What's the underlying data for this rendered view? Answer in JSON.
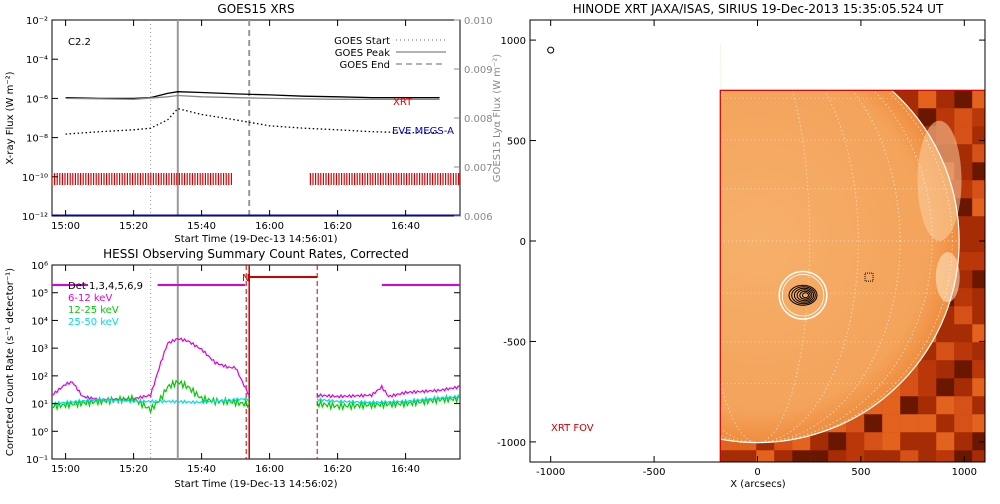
{
  "panels": {
    "goes": {
      "title": "GOES15 XRS",
      "class_label": "C2.2",
      "y_label_left": "X-ray Flux (W m⁻²)",
      "y_label_right": "GOES15 Lyα Flux (W m⁻²)",
      "x_label": "Start Time (19-Dec-13 14:56:01)",
      "legend": [
        "GOES Start",
        "GOES Peak",
        "GOES End"
      ],
      "series_labels": {
        "xrt": "XRT",
        "eve": "EVE MEGS-A"
      },
      "x_ticks": [
        "15:00",
        "15:20",
        "15:40",
        "16:00",
        "16:20",
        "16:40"
      ],
      "y_ticks_left": [
        "10⁻²",
        "10⁻⁴",
        "10⁻⁶",
        "10⁻⁸",
        "10⁻¹⁰",
        "10⁻¹²"
      ],
      "y_ticks_right": [
        "0.010",
        "0.009",
        "0.008",
        "0.007",
        "0.006"
      ]
    },
    "hessi": {
      "title": "HESSI Observing Summary Count Rates, Corrected",
      "y_label": "Corrected Count Rate (s⁻¹ detector⁻¹)",
      "x_label": "Start Time (19-Dec-13 14:56:02)",
      "legend": [
        {
          "label": "Det 1,3,4,5,6,9",
          "color": "#000000"
        },
        {
          "label": "6-12 keV",
          "color": "#dd00dd"
        },
        {
          "label": "12-25 keV",
          "color": "#00cc00"
        },
        {
          "label": "25-50 keV",
          "color": "#00dddd"
        }
      ],
      "night_flag": "N",
      "x_ticks": [
        "15:00",
        "15:20",
        "15:40",
        "16:00",
        "16:20",
        "16:40"
      ],
      "y_ticks": [
        "10⁶",
        "10⁵",
        "10⁴",
        "10³",
        "10²",
        "10¹",
        "10⁰",
        "10⁻¹"
      ]
    },
    "xrt": {
      "title": "HINODE XRT JAXA/ISAS, SIRIUS 19-Dec-2013 15:35:05.524 UT",
      "fov_label": "XRT FOV",
      "x_label": "X (arcsecs)",
      "x_ticks": [
        "-1000",
        "-500",
        "0",
        "500",
        "1000"
      ],
      "y_ticks": [
        "1000",
        "500",
        "0",
        "-500",
        "-1000"
      ]
    }
  },
  "chart_data": [
    {
      "type": "line",
      "title": "GOES15 XRS",
      "xlabel": "Start Time (19-Dec-13 14:56:01)",
      "ylabel": "X-ray Flux (W m⁻²)",
      "y_scale": "log",
      "ylim": [
        1e-12,
        0.01
      ],
      "xlim": [
        "14:56",
        "16:56"
      ],
      "y2label": "GOES15 Lyα Flux (W m⁻²)",
      "y2lim": [
        0.006,
        0.01
      ],
      "annotations": {
        "class": "C2.2",
        "start": "15:25",
        "peak": "15:33",
        "end": "15:54"
      },
      "series": [
        {
          "name": "XRT",
          "color": "#000000",
          "style": "solid",
          "x": [
            "15:00",
            "15:10",
            "15:20",
            "15:25",
            "15:30",
            "15:33",
            "15:40",
            "15:50",
            "16:00",
            "16:10",
            "16:20",
            "16:30",
            "16:40",
            "16:50"
          ],
          "y": [
            1.1e-06,
            1e-06,
            1e-06,
            1.1e-06,
            1.8e-06,
            2.2e-06,
            2e-06,
            1.7e-06,
            1.5e-06,
            1.3e-06,
            1.2e-06,
            1.1e-06,
            1.1e-06,
            1.1e-06
          ]
        },
        {
          "color": "#888888",
          "style": "solid",
          "x": [
            "15:00",
            "15:20",
            "15:30",
            "15:33",
            "15:40",
            "16:00",
            "16:20",
            "16:40",
            "16:50"
          ],
          "y": [
            1e-06,
            9e-07,
            1.2e-06,
            1.4e-06,
            1.2e-06,
            1e-06,
            9e-07,
            9e-07,
            9e-07
          ]
        },
        {
          "color": "#000000",
          "style": "dotted",
          "x": [
            "15:00",
            "15:10",
            "15:20",
            "15:25",
            "15:30",
            "15:33",
            "15:40",
            "15:50",
            "16:00",
            "16:10",
            "16:20",
            "16:30",
            "16:40",
            "16:50"
          ],
          "y": [
            1.5e-08,
            2e-08,
            2.5e-08,
            3e-08,
            8e-08,
            3e-07,
            1.5e-07,
            8e-08,
            4e-08,
            3e-08,
            2.5e-08,
            2e-08,
            1.8e-08,
            1.8e-08
          ]
        },
        {
          "name": "EVE MEGS-A",
          "color": "#0000cc",
          "style": "solid",
          "x": [
            "14:56",
            "16:56"
          ],
          "y": [
            1e-12,
            1e-12
          ]
        }
      ],
      "xrt_coverage": [
        [
          "14:56",
          "15:49"
        ],
        [
          "16:12",
          "16:56"
        ]
      ],
      "xrt_coverage_color": "#dd0000"
    },
    {
      "type": "line",
      "title": "HESSI Observing Summary Count Rates, Corrected",
      "xlabel": "Start Time (19-Dec-13 14:56:02)",
      "ylabel": "Corrected Count Rate (s⁻¹ detector⁻¹)",
      "y_scale": "log",
      "ylim": [
        0.1,
        1000000.0
      ],
      "xlim": [
        "14:56",
        "16:56"
      ],
      "annotations": {
        "start": "15:25",
        "peak": "15:33",
        "night_start": "15:54",
        "night_end": "16:14"
      },
      "series": [
        {
          "name": "6-12 keV",
          "color": "#dd00dd",
          "x": [
            "14:56",
            "15:00",
            "15:02",
            "15:05",
            "15:10",
            "15:20",
            "15:25",
            "15:28",
            "15:30",
            "15:33",
            "15:36",
            "15:40",
            "15:44",
            "15:48",
            "15:50",
            "15:52",
            "15:54"
          ],
          "y": [
            20,
            50,
            60,
            18,
            14,
            15,
            20,
            300,
            1500,
            2200,
            1800,
            900,
            300,
            200,
            200,
            60,
            20
          ]
        },
        {
          "name": "6-12 keV",
          "color": "#dd00dd",
          "x": [
            "16:14",
            "16:20",
            "16:30",
            "16:33",
            "16:35",
            "16:40",
            "16:50",
            "16:56"
          ],
          "y": [
            20,
            18,
            20,
            40,
            18,
            25,
            30,
            40
          ]
        },
        {
          "name": "12-25 keV",
          "color": "#00cc00",
          "x": [
            "14:56",
            "15:00",
            "15:10",
            "15:20",
            "15:25",
            "15:28",
            "15:30",
            "15:33",
            "15:36",
            "15:40",
            "15:44",
            "15:48",
            "15:52",
            "15:54"
          ],
          "y": [
            8,
            9,
            12,
            15,
            6,
            15,
            40,
            60,
            40,
            15,
            12,
            12,
            10,
            10
          ]
        },
        {
          "name": "12-25 keV",
          "color": "#00cc00",
          "x": [
            "16:14",
            "16:20",
            "16:30",
            "16:40",
            "16:50",
            "16:56"
          ],
          "y": [
            10,
            8,
            9,
            10,
            14,
            15
          ]
        },
        {
          "name": "25-50 keV",
          "color": "#00dddd",
          "x": [
            "14:56",
            "15:10",
            "15:20",
            "15:30",
            "15:40",
            "15:50",
            "15:54"
          ],
          "y": [
            10,
            14,
            12,
            12,
            11,
            14,
            15
          ]
        },
        {
          "name": "25-50 keV",
          "color": "#00dddd",
          "x": [
            "16:14",
            "16:20",
            "16:30",
            "16:40",
            "16:50",
            "16:56"
          ],
          "y": [
            14,
            12,
            11,
            12,
            16,
            18
          ]
        }
      ],
      "attenuator_bars": [
        [
          "14:56",
          "16:56"
        ]
      ]
    },
    {
      "type": "heatmap",
      "title": "HINODE XRT JAXA/ISAS, SIRIUS 19-Dec-2013 15:35:05.524 UT",
      "xlabel": "X (arcsecs)",
      "ylabel": "",
      "xlim": [
        -1100,
        1100
      ],
      "ylim": [
        -1100,
        1100
      ],
      "fov_box": {
        "x": [
          -180,
          1100
        ],
        "y": [
          -1100,
          750
        ]
      },
      "solar_radius": 975,
      "source_center": [
        220,
        -270
      ],
      "source_circle_radius": 115,
      "grid": true
    }
  ]
}
